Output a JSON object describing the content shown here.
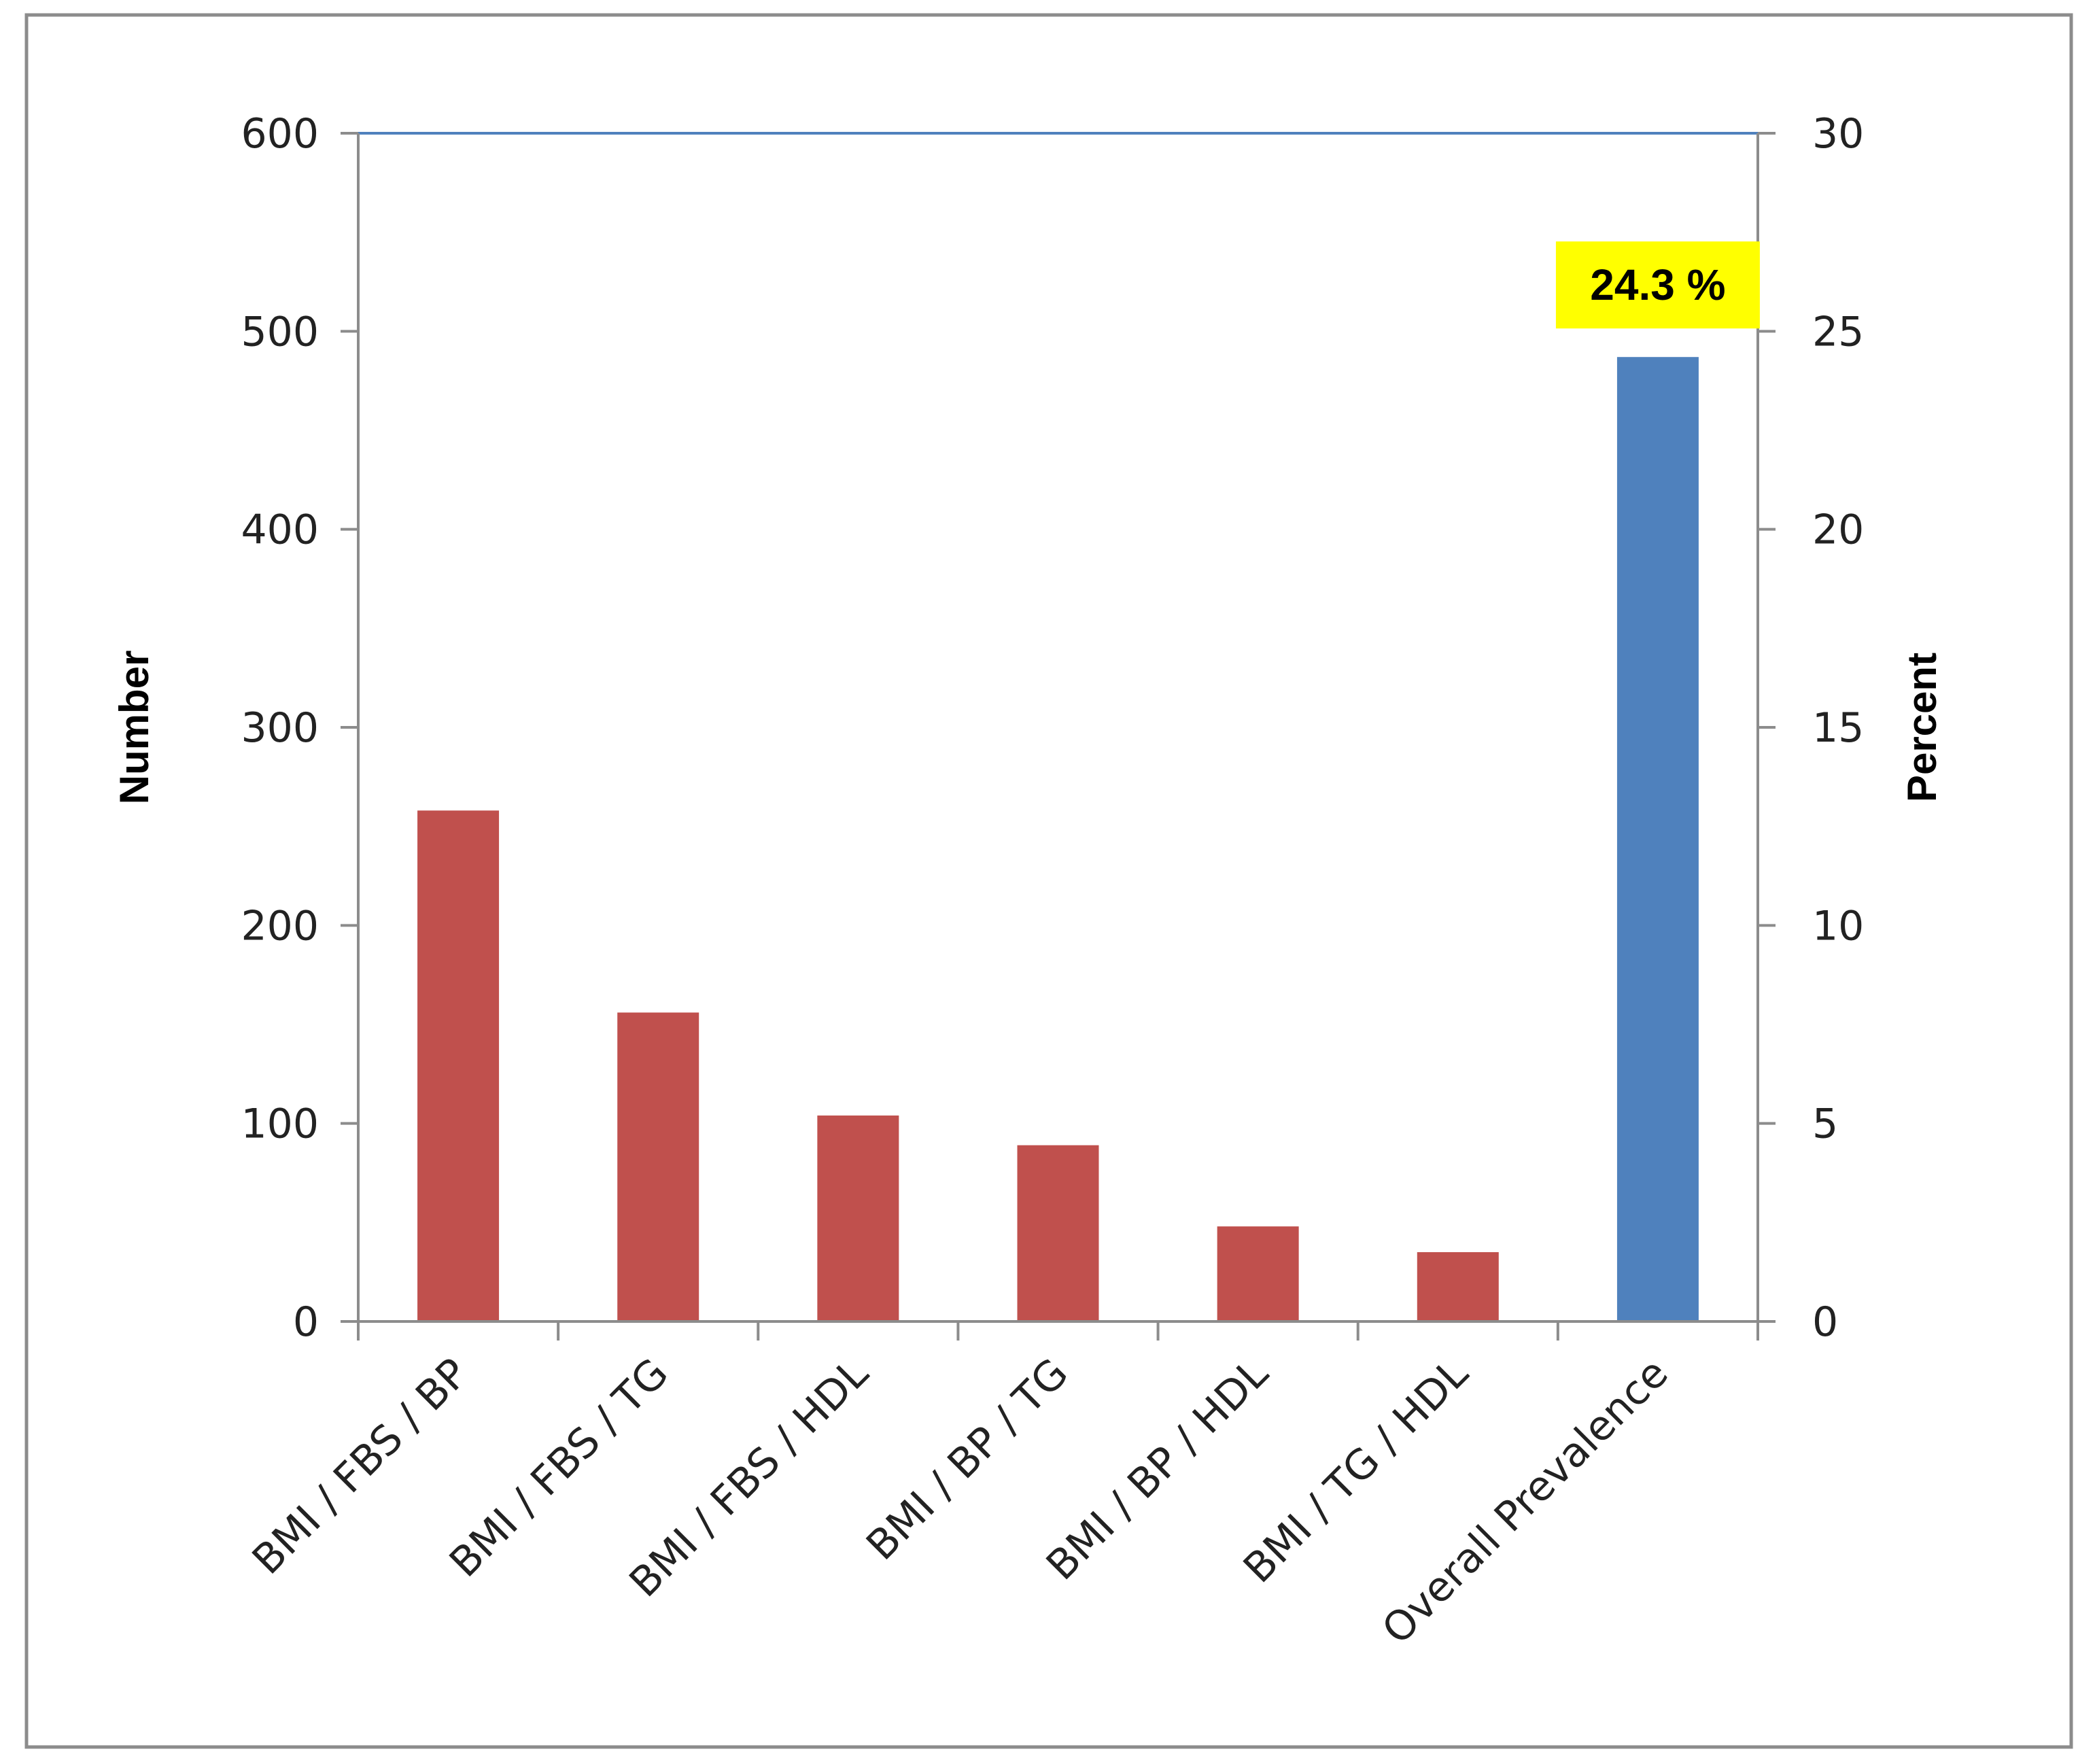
{
  "chart_data": {
    "type": "bar",
    "title": "",
    "categories": [
      "BMI / FBS / BP",
      "BMI / FBS / TG",
      "BMI / FBS / HDL",
      "BMI / BP / TG",
      "BMI / BP / HDL",
      "BMI / TG / HDL",
      "Overall Prevalence"
    ],
    "values": [
      258,
      156,
      104,
      89,
      48,
      35,
      487
    ],
    "bar_colors": [
      "#c0504d",
      "#c0504d",
      "#c0504d",
      "#c0504d",
      "#c0504d",
      "#c0504d",
      "#4f81bd"
    ],
    "secondary_line": {
      "axis": "right",
      "value": 30,
      "color": "#4f81bd"
    },
    "ylabel": "Number",
    "ylim": [
      0,
      600
    ],
    "yticks": [
      "0",
      "100",
      "200",
      "300",
      "400",
      "500",
      "600"
    ],
    "y2label": "Percent",
    "y2lim": [
      0,
      30
    ],
    "y2ticks": [
      "0",
      "5",
      "10",
      "15",
      "20",
      "25",
      "30"
    ],
    "annotation": {
      "text": "24.3 %",
      "category": "Overall Prevalence",
      "background": "#ffff00"
    },
    "grid": false,
    "legend": "none"
  }
}
